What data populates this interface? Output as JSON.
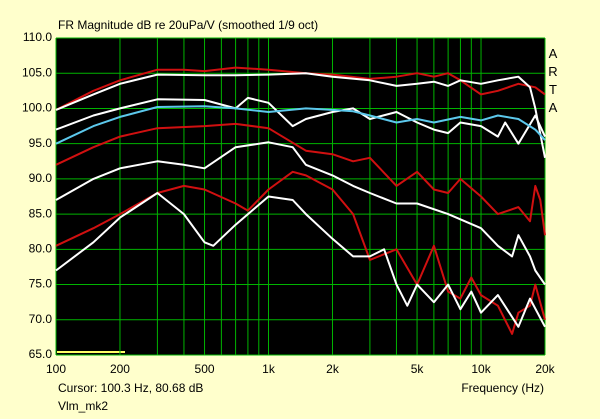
{
  "chart_data": {
    "type": "line",
    "title": "FR Magnitude dB re 20uPa/V (smoothed 1/9 oct)",
    "brand": "ARTA",
    "cursor": "Cursor: 100.3 Hz, 80.68 dB",
    "x_label": "Frequency (Hz)",
    "name": "Vlm_mk2",
    "x_log": true,
    "grid": true,
    "grid_color": "#00b400",
    "background": "#000000",
    "xlim": [
      100,
      20000
    ],
    "xticks": [
      100,
      200,
      500,
      {
        "value": 1000,
        "label": "1k"
      },
      {
        "value": 2000,
        "label": "2k"
      },
      {
        "value": 5000,
        "label": "5k"
      },
      {
        "value": 10000,
        "label": "10k"
      },
      {
        "value": 20000,
        "label": "20k"
      }
    ],
    "x_minor_grid": [
      300,
      400,
      600,
      700,
      800,
      900,
      3000,
      4000,
      6000,
      7000,
      8000,
      9000
    ],
    "ylim": [
      65,
      110
    ],
    "yticks": [
      {
        "value": 65,
        "label": "65.0"
      },
      {
        "value": 70,
        "label": "70.0"
      },
      {
        "value": 75,
        "label": "75.0"
      },
      {
        "value": 80,
        "label": "80.0"
      },
      {
        "value": 85,
        "label": "85.0"
      },
      {
        "value": 90,
        "label": "90.0"
      },
      {
        "value": 95,
        "label": "95.0"
      },
      {
        "value": 100,
        "label": "100.0"
      },
      {
        "value": 105,
        "label": "105.0"
      },
      {
        "value": 110,
        "label": "110.0"
      }
    ],
    "series": [
      {
        "color": "#d01010",
        "x": [
          100,
          150,
          200,
          300,
          400,
          500,
          700,
          1000,
          1500,
          2000,
          3000,
          4000,
          5000,
          6000,
          7000,
          8000,
          10000,
          12000,
          15000,
          18000,
          20000
        ],
        "values": [
          99.8,
          102.5,
          104,
          105.5,
          105.5,
          105.3,
          105.8,
          105.5,
          105,
          104.8,
          104.2,
          104.5,
          105,
          104.5,
          105,
          104,
          102,
          102.5,
          103.5,
          103,
          102
        ]
      },
      {
        "color": "#ffffff",
        "x": [
          100,
          150,
          200,
          300,
          500,
          700,
          1000,
          1500,
          2000,
          3000,
          4000,
          5000,
          6000,
          7000,
          8000,
          10000,
          12000,
          15000,
          17000,
          18000,
          20000
        ],
        "values": [
          99.8,
          102,
          103.5,
          104.8,
          104.7,
          104.7,
          104.8,
          105,
          104.5,
          104,
          103.2,
          103.5,
          103.8,
          103.2,
          104,
          103.5,
          104,
          104.5,
          103,
          100,
          93
        ]
      },
      {
        "color": "#ffffff",
        "x": [
          100,
          150,
          200,
          300,
          500,
          700,
          800,
          1000,
          1300,
          1500,
          2000,
          2500,
          3000,
          4000,
          5000,
          6000,
          7000,
          8000,
          10000,
          12000,
          13000,
          15000,
          18000,
          20000
        ],
        "values": [
          97,
          99,
          100,
          101.3,
          101.2,
          100,
          101.5,
          100.8,
          97.5,
          98.5,
          99.5,
          100,
          98.5,
          99.5,
          98,
          97,
          96.5,
          98,
          97.5,
          96,
          98,
          95,
          99,
          96
        ]
      },
      {
        "color": "#5cc8ec",
        "x": [
          100,
          150,
          200,
          300,
          500,
          700,
          1000,
          1500,
          2000,
          2500,
          3000,
          4000,
          5000,
          6000,
          8000,
          10000,
          12000,
          15000,
          18000,
          20000
        ],
        "values": [
          95,
          97.5,
          98.8,
          100.2,
          100.3,
          100,
          99.5,
          100,
          99.8,
          99.6,
          99,
          98,
          98.5,
          98,
          98.8,
          98.3,
          99,
          98.5,
          97,
          95.5
        ]
      },
      {
        "color": "#d01010",
        "x": [
          100,
          150,
          200,
          300,
          500,
          700,
          1000,
          1500,
          2000,
          2500,
          3000,
          4000,
          5000,
          6000,
          7000,
          8000,
          10000,
          12000,
          15000,
          17000,
          18000,
          19000,
          20000
        ],
        "values": [
          92,
          94.5,
          96,
          97.2,
          97.5,
          97.8,
          97.2,
          94,
          93.5,
          92.5,
          93,
          89,
          91,
          88.5,
          88,
          90,
          87.5,
          85,
          86,
          84,
          89,
          87,
          82
        ]
      },
      {
        "color": "#ffffff",
        "x": [
          100,
          150,
          200,
          300,
          400,
          500,
          700,
          1000,
          1300,
          1500,
          2000,
          2500,
          3000,
          4000,
          5000,
          7000,
          10000,
          12000,
          14000,
          15000,
          17000,
          18000,
          20000
        ],
        "values": [
          87,
          90,
          91.5,
          92.5,
          92,
          91.5,
          94.5,
          95.2,
          94.5,
          92,
          90.5,
          89,
          88,
          86.5,
          86.5,
          85,
          83,
          80.5,
          79,
          82,
          79,
          77,
          75
        ]
      },
      {
        "color": "#d01010",
        "x": [
          100,
          150,
          200,
          300,
          400,
          500,
          700,
          800,
          1000,
          1300,
          1500,
          2000,
          2500,
          3000,
          4000,
          5000,
          6000,
          7000,
          8000,
          9000,
          10000,
          12000,
          14000,
          15000,
          17000,
          18000,
          20000
        ],
        "values": [
          80.5,
          83,
          85,
          88,
          89,
          88.5,
          86.5,
          85.5,
          88.5,
          91,
          90.5,
          88.5,
          85,
          78.5,
          80,
          75,
          80.5,
          74,
          73,
          76,
          73.5,
          72,
          68,
          71,
          72,
          75,
          70
        ]
      },
      {
        "color": "#ffffff",
        "x": [
          100,
          150,
          200,
          300,
          400,
          500,
          550,
          700,
          1000,
          1300,
          1500,
          2000,
          2500,
          3000,
          3500,
          4000,
          4500,
          5000,
          6000,
          7000,
          8000,
          9000,
          10000,
          12000,
          15000,
          17000,
          20000
        ],
        "values": [
          77,
          81,
          84.5,
          88,
          85,
          81,
          80.5,
          83.5,
          87.5,
          87,
          85,
          81.5,
          79,
          79,
          80,
          75,
          72,
          75,
          72.5,
          75,
          71.5,
          74,
          71,
          73.5,
          69,
          73,
          69
        ]
      }
    ]
  }
}
